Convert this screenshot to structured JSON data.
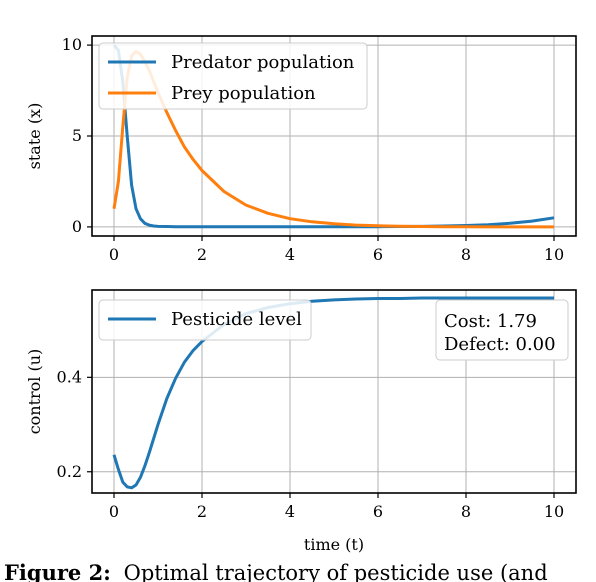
{
  "caption": {
    "label": "Figure 2:",
    "text": "Optimal trajectory of pesticide use (and"
  },
  "chart_data": [
    {
      "type": "line",
      "ylabel": "state (x)",
      "xlabel": "",
      "xlim": [
        -0.5,
        10.5
      ],
      "ylim": [
        -0.5,
        10.5
      ],
      "xticks": [
        0,
        2,
        4,
        6,
        8,
        10
      ],
      "yticks": [
        0,
        5,
        10
      ],
      "grid": true,
      "legend_position": "upper left",
      "x": [
        0,
        0.1,
        0.2,
        0.3,
        0.4,
        0.5,
        0.6,
        0.7,
        0.8,
        0.9,
        1.0,
        1.2,
        1.4,
        1.6,
        1.8,
        2.0,
        2.5,
        3.0,
        3.5,
        4.0,
        4.5,
        5.0,
        5.5,
        6.0,
        6.5,
        7.0,
        7.5,
        8.0,
        8.5,
        9.0,
        9.5,
        10.0
      ],
      "series": [
        {
          "name": "Predator population",
          "color": "#1f77b4",
          "values": [
            10.0,
            9.7,
            8.0,
            5.0,
            2.3,
            1.0,
            0.45,
            0.2,
            0.1,
            0.05,
            0.03,
            0.02,
            0.01,
            0.01,
            0.01,
            0.01,
            0.01,
            0.01,
            0.01,
            0.01,
            0.01,
            0.01,
            0.01,
            0.01,
            0.02,
            0.03,
            0.05,
            0.08,
            0.12,
            0.2,
            0.32,
            0.5
          ]
        },
        {
          "name": "Prey population",
          "color": "#ff7f0e",
          "values": [
            1.0,
            2.5,
            5.5,
            8.2,
            9.4,
            9.65,
            9.5,
            9.1,
            8.6,
            8.0,
            7.4,
            6.3,
            5.3,
            4.4,
            3.7,
            3.1,
            1.95,
            1.2,
            0.75,
            0.45,
            0.28,
            0.17,
            0.1,
            0.06,
            0.04,
            0.02,
            0.01,
            0.01,
            0.0,
            0.0,
            0.0,
            0.0
          ]
        }
      ]
    },
    {
      "type": "line",
      "ylabel": "control (u)",
      "xlabel": "time (t)",
      "xlim": [
        -0.5,
        10.5
      ],
      "ylim": [
        0.155,
        0.585
      ],
      "xticks": [
        0,
        2,
        4,
        6,
        8,
        10
      ],
      "yticks": [
        0.2,
        0.4
      ],
      "grid": true,
      "legend_position": "upper left",
      "annotation_lines": [
        "Cost: 1.79",
        "Defect: 0.00"
      ],
      "x": [
        0,
        0.1,
        0.2,
        0.3,
        0.4,
        0.5,
        0.6,
        0.7,
        0.8,
        1.0,
        1.2,
        1.4,
        1.6,
        1.8,
        2.0,
        2.5,
        3.0,
        3.5,
        4.0,
        4.5,
        5.0,
        5.5,
        6.0,
        6.5,
        7.0,
        7.5,
        8.0,
        8.5,
        9.0,
        9.5,
        10.0
      ],
      "series": [
        {
          "name": "Pesticide level",
          "color": "#1f77b4",
          "values": [
            0.236,
            0.205,
            0.178,
            0.168,
            0.166,
            0.172,
            0.188,
            0.212,
            0.24,
            0.3,
            0.355,
            0.398,
            0.432,
            0.457,
            0.476,
            0.512,
            0.535,
            0.548,
            0.556,
            0.561,
            0.564,
            0.566,
            0.567,
            0.567,
            0.568,
            0.568,
            0.568,
            0.568,
            0.568,
            0.568,
            0.568
          ]
        }
      ]
    }
  ]
}
